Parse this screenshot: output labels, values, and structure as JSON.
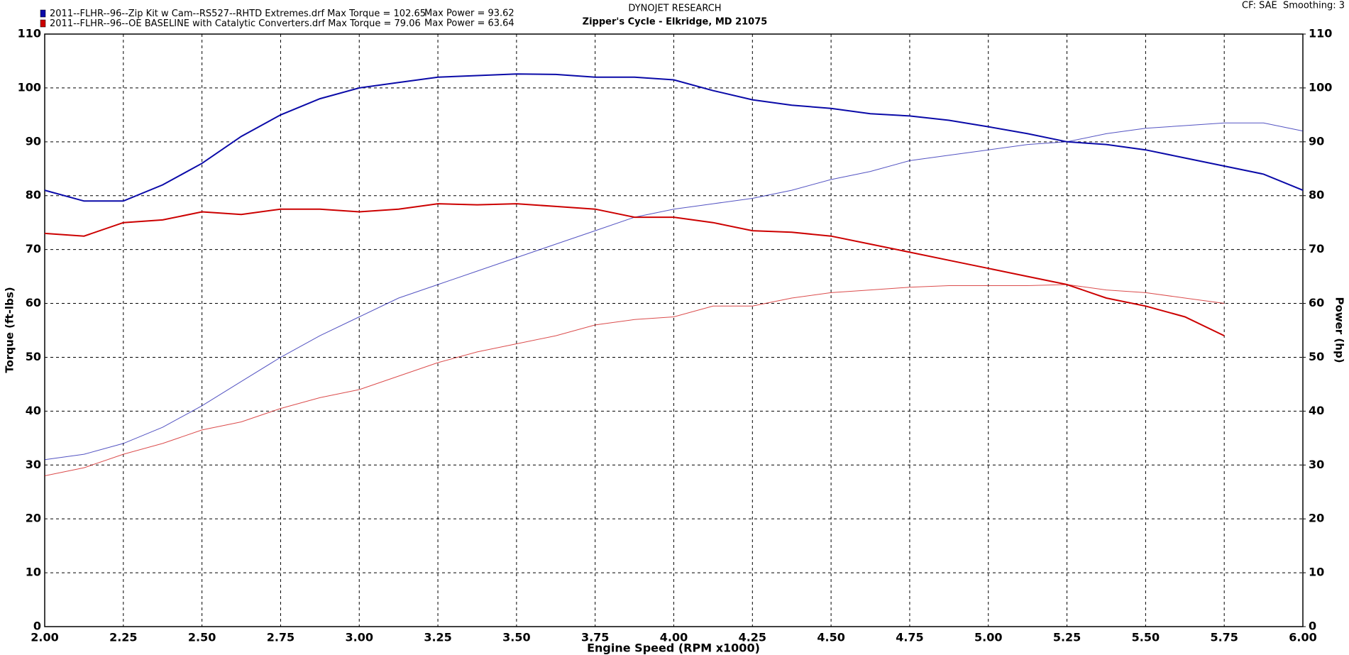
{
  "chart_data": {
    "type": "line",
    "title": "DYNOJET RESEARCH",
    "subtitle": "Zipper's Cycle - Elkridge, MD 21075",
    "settings_text": "CF: SAE  Smoothing: 3",
    "x_label": "Engine Speed (RPM x1000)",
    "y_label": "Torque (ft-lbs)",
    "y2_label": "Power (hp)",
    "grid": true,
    "x": [
      2,
      2.125,
      2.25,
      2.375,
      2.5,
      2.625,
      2.75,
      2.875,
      3,
      3.125,
      3.25,
      3.375,
      3.5,
      3.625,
      3.75,
      3.875,
      4,
      4.125,
      4.25,
      4.375,
      4.5,
      4.625,
      4.75,
      4.875,
      5,
      5.125,
      5.25,
      5.375,
      5.5,
      5.625,
      5.75,
      5.875,
      6
    ],
    "runs": [
      {
        "name": "2011--FLHR--96--Zip Kit w Cam--RS527--RHTD Extremes.drf",
        "max_torque": "Max Torque = 102.65",
        "max_power": "Max Power = 93.62",
        "color": "#0a0aa8",
        "torque": [
          81,
          79,
          79,
          82,
          86,
          91,
          95,
          98,
          100,
          101,
          102,
          102.3,
          102.6,
          102.5,
          102,
          102,
          101.5,
          99.5,
          97.8,
          96.8,
          96.2,
          95.2,
          94.8,
          94,
          92.8,
          91.5,
          90,
          89.5,
          88.5,
          87,
          85.5,
          84,
          81
        ],
        "power": [
          31,
          32,
          34,
          37,
          41,
          45.5,
          50,
          54,
          57.5,
          61,
          63.5,
          66,
          68.5,
          71,
          73.5,
          76,
          77.5,
          78.5,
          79.5,
          81,
          83,
          84.5,
          86.5,
          87.5,
          88.5,
          89.5,
          90,
          91.5,
          92.5,
          93,
          93.5,
          93.5,
          92
        ]
      },
      {
        "name": "2011--FLHR--96--OE BASELINE with Catalytic Converters.drf",
        "max_torque": "Max Torque = 79.06",
        "max_power": "Max Power = 63.64",
        "color": "#cc0000",
        "torque": [
          73,
          72.5,
          75,
          75.5,
          77,
          76.5,
          77.5,
          77.5,
          77,
          77.5,
          78.5,
          78.3,
          78.5,
          78,
          77.5,
          76,
          76,
          75,
          73.5,
          73.2,
          72.5,
          71,
          69.5,
          68,
          66.5,
          65,
          63.5,
          61,
          59.5,
          57.5,
          54,
          null,
          null
        ],
        "power": [
          28,
          29.5,
          32,
          34,
          36.5,
          38,
          40.5,
          42.5,
          44,
          46.5,
          49,
          51,
          52.5,
          54,
          56,
          57,
          57.5,
          59.5,
          59.5,
          61,
          62,
          62.5,
          63,
          63.3,
          63.3,
          63.3,
          63.5,
          62.5,
          62,
          61,
          60,
          null,
          null
        ]
      }
    ],
    "xlim": [
      2,
      6
    ],
    "xticks": [
      {
        "value": 2,
        "label": "2.00"
      },
      {
        "value": 2.25,
        "label": "2.25"
      },
      {
        "value": 2.5,
        "label": "2.50"
      },
      {
        "value": 2.75,
        "label": "2.75"
      },
      {
        "value": 3,
        "label": "3.00"
      },
      {
        "value": 3.25,
        "label": "3.25"
      },
      {
        "value": 3.5,
        "label": "3.50"
      },
      {
        "value": 3.75,
        "label": "3.75"
      },
      {
        "value": 4,
        "label": "4.00"
      },
      {
        "value": 4.25,
        "label": "4.25"
      },
      {
        "value": 4.5,
        "label": "4.50"
      },
      {
        "value": 4.75,
        "label": "4.75"
      },
      {
        "value": 5,
        "label": "5.00"
      },
      {
        "value": 5.25,
        "label": "5.25"
      },
      {
        "value": 5.5,
        "label": "5.50"
      },
      {
        "value": 5.75,
        "label": "5.75"
      },
      {
        "value": 6,
        "label": "6.00"
      }
    ],
    "ylim": [
      0,
      110
    ],
    "yticks": [
      0,
      10,
      20,
      30,
      40,
      50,
      60,
      70,
      80,
      90,
      100,
      110
    ],
    "y2lim": [
      0,
      110
    ],
    "y2ticks": [
      0,
      10,
      20,
      30,
      40,
      50,
      60,
      70,
      80,
      90,
      100,
      110
    ]
  }
}
